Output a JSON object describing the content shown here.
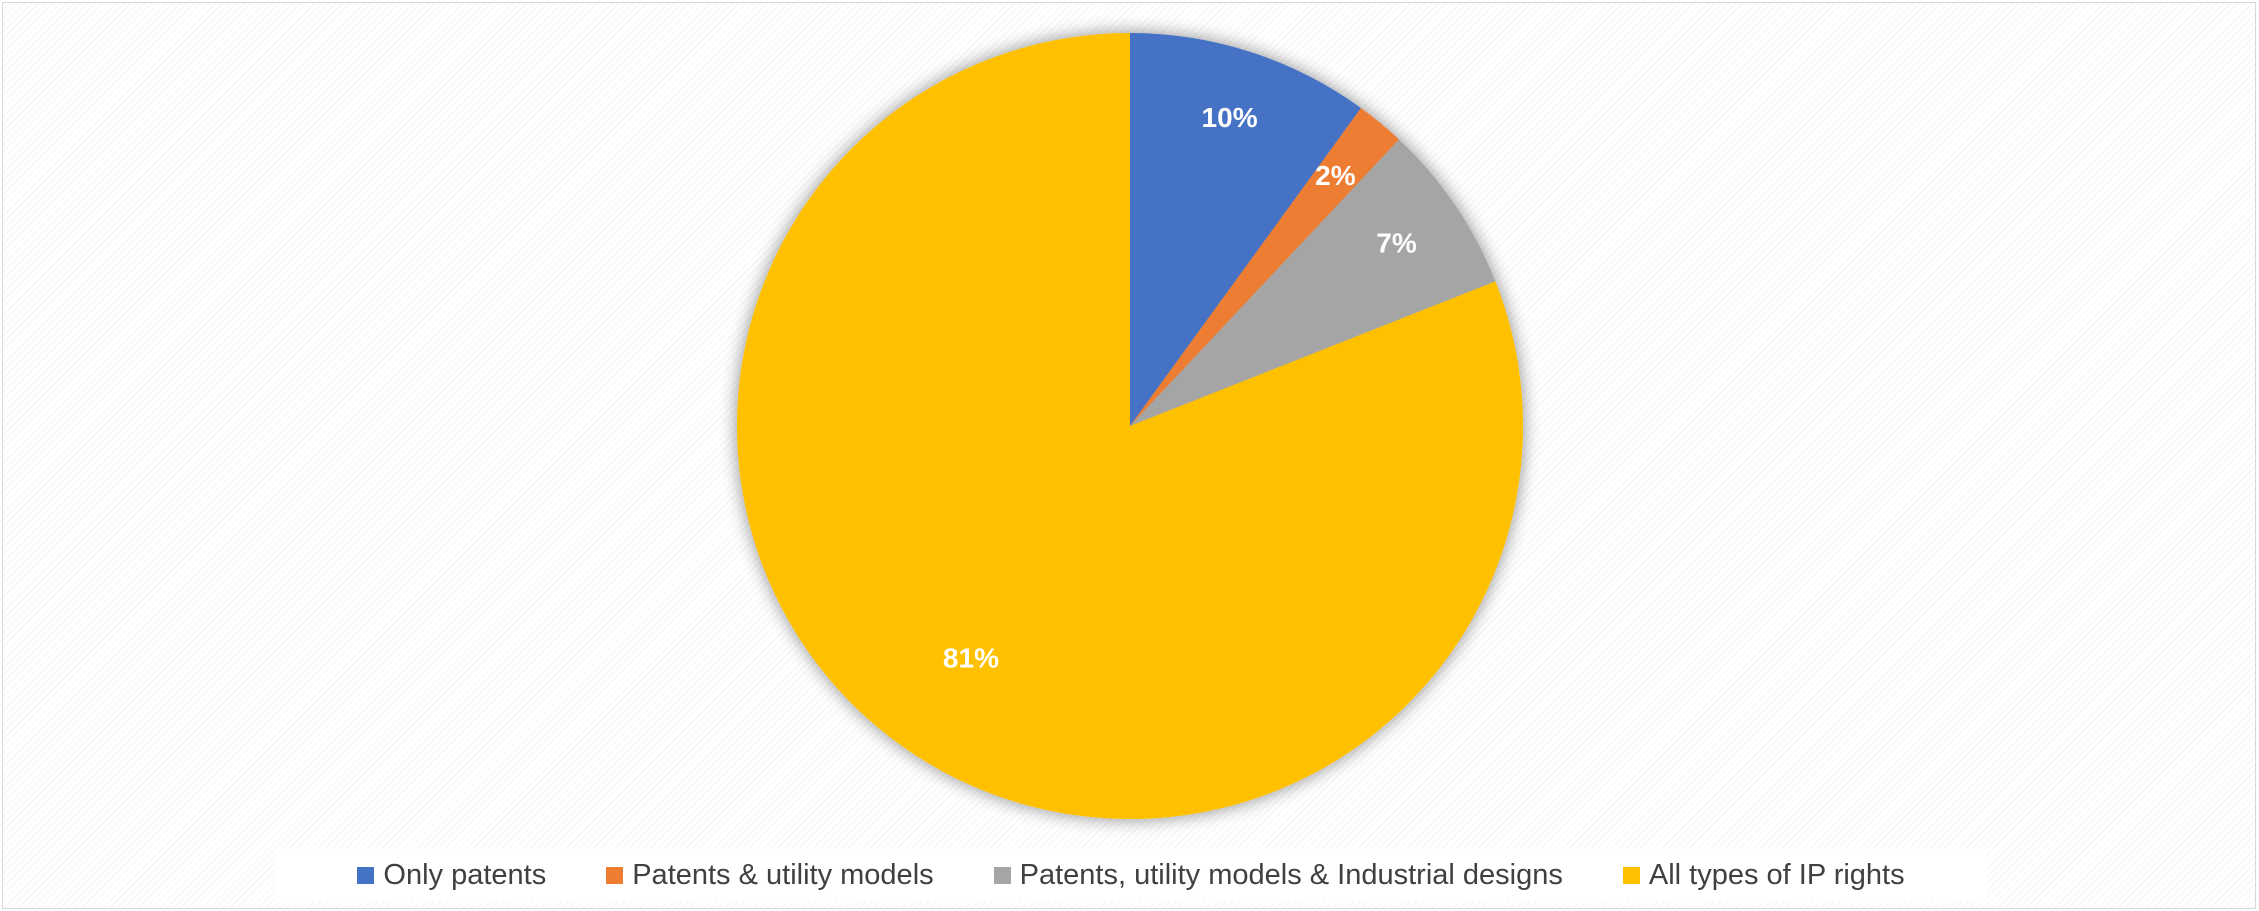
{
  "chart_data": {
    "type": "pie",
    "title": "",
    "series": [
      {
        "values": [
          10,
          2,
          7,
          81
        ],
        "labels": [
          "10%",
          "2%",
          "7%",
          "81%"
        ]
      }
    ],
    "categories": [
      "Only patents",
      "Patents & utility models",
      "Patents, utility models & Industrial designs",
      "All types of IP rights"
    ],
    "colors": [
      "#4472C4",
      "#ED7D31",
      "#A5A5A5",
      "#FFC000"
    ],
    "start_angle": "12 o'clock, clockwise",
    "legend_position": "bottom"
  }
}
